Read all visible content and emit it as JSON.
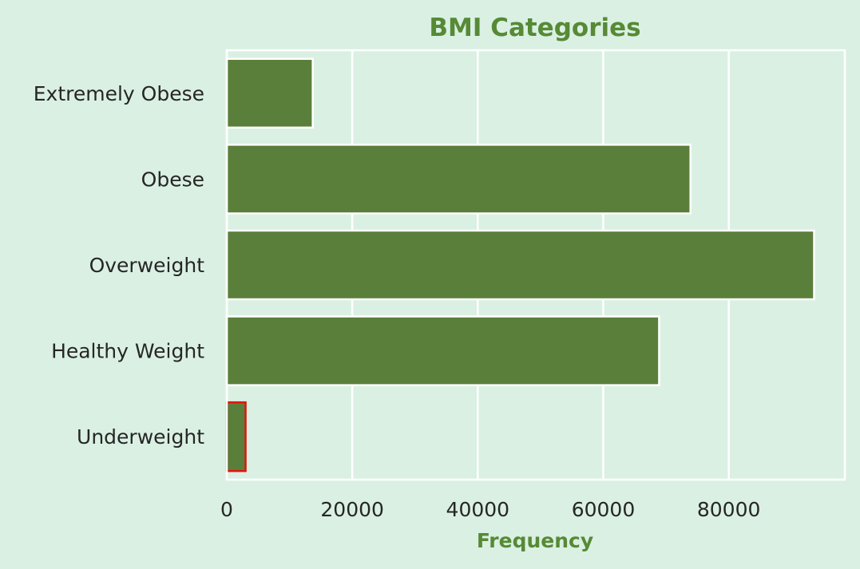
{
  "chart_data": {
    "type": "bar",
    "orientation": "horizontal",
    "title": "BMI Categories",
    "xlabel": "Frequency",
    "ylabel": "",
    "categories": [
      "Extremely Obese",
      "Obese",
      "Overweight",
      "Healthy Weight",
      "Underweight"
    ],
    "values": [
      13700,
      73900,
      93600,
      68900,
      3000
    ],
    "xlim": [
      0,
      98500
    ],
    "xticks": [
      0,
      20000,
      40000,
      60000,
      80000
    ],
    "xtick_labels": [
      "0",
      "20000",
      "40000",
      "60000",
      "80000"
    ],
    "grid": true,
    "highlighted_category": "Underweight",
    "colors": {
      "background": "#daf0e3",
      "bar": "#5a7f3a",
      "bar_edge": "#ffffff",
      "highlight_edge": "#e0150c",
      "grid": "#ffffff",
      "title": "#568a35",
      "text": "#262626"
    }
  }
}
